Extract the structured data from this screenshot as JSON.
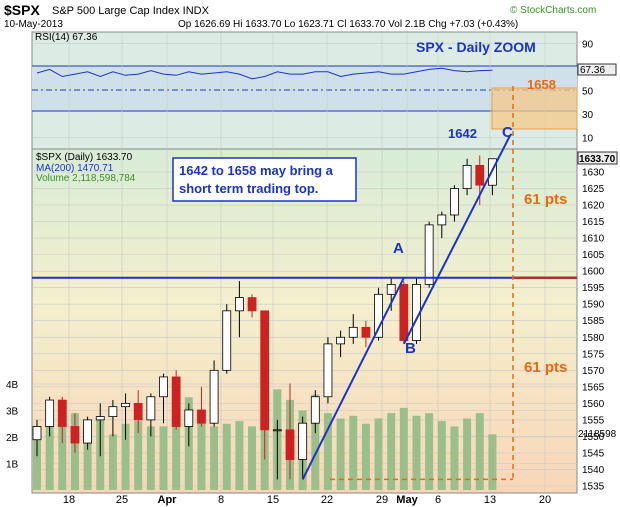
{
  "header": {
    "symbol": "$SPX",
    "name": "S&P 500 Large Cap Index  INDX",
    "date": "10-May-2013",
    "ohlc": "Op 1626.69   Hi 1633.70   Lo 1623.71   Cl 1633.70   Vol 2.1B   Chg +7.03 (+0.43%)",
    "up_arrow": "▲",
    "brand": "© StockCharts.com"
  },
  "rsi_panel": {
    "label": "RSI(14) 67.36",
    "value_tag": "67.36",
    "ticks": [
      "90",
      "70",
      "50",
      "30",
      "10"
    ],
    "title": "SPX - Daily ZOOM"
  },
  "price_panel": {
    "legend_main": "$SPX (Daily) 1633.70",
    "legend_ma": "MA(200) 1470.71",
    "legend_volume": "Volume 2,118,598,784",
    "price_tag": "1633.70",
    "volume_tag": "2118598",
    "volume_ticks": [
      "4B",
      "3B",
      "2B",
      "1B"
    ]
  },
  "annotations": {
    "note_line1": "1642 to 1658 may bring a",
    "note_line2": "short term trading top.",
    "label_1658": "1658",
    "label_1642": "1642",
    "label_A": "A",
    "label_B": "B",
    "label_C": "C",
    "pts_upper": "61 pts",
    "pts_lower": "61 pts"
  },
  "colors": {
    "up": "#ffffff",
    "down": "#cc2222",
    "blue": "#1a33cc",
    "orange": "#e86a10",
    "volume": "#9bbf8a",
    "rsi_bg": "#dcebe4",
    "price_bg_top": "#d8ecd7",
    "price_bg_bottom": "#f8d6b8"
  },
  "chart_data": {
    "type": "candlestick",
    "title": "SPX - Daily ZOOM",
    "price_axis": [
      1535,
      1634
    ],
    "price_ticks": [
      1535,
      1540,
      1545,
      1550,
      1555,
      1560,
      1565,
      1570,
      1575,
      1580,
      1585,
      1590,
      1595,
      1600,
      1605,
      1610,
      1615,
      1620,
      1625,
      1630
    ],
    "x_tick_labels": [
      "18",
      "25",
      "Apr",
      "8",
      "15",
      "22",
      "29",
      "May",
      "6",
      "13",
      "20"
    ],
    "candles": [
      {
        "o": 1549.0,
        "h": 1555.0,
        "l": 1544.0,
        "c": 1553.0,
        "v": 2.0
      },
      {
        "o": 1553.0,
        "h": 1562.0,
        "l": 1550.0,
        "c": 1561.0,
        "v": 2.5
      },
      {
        "o": 1561.0,
        "h": 1562.0,
        "l": 1548.0,
        "c": 1553.0,
        "v": 3.0
      },
      {
        "o": 1553.0,
        "h": 1557.0,
        "l": 1545.0,
        "c": 1548.0,
        "v": 2.9
      },
      {
        "o": 1548.0,
        "h": 1556.0,
        "l": 1546.0,
        "c": 1555.0,
        "v": 2.2
      },
      {
        "o": 1555.0,
        "h": 1560.0,
        "l": 1544.0,
        "c": 1556.0,
        "v": 2.7
      },
      {
        "o": 1556.0,
        "h": 1561.0,
        "l": 1550.0,
        "c": 1559.0,
        "v": 2.1
      },
      {
        "o": 1559.0,
        "h": 1563.0,
        "l": 1549.0,
        "c": 1560.0,
        "v": 2.5
      },
      {
        "o": 1560.0,
        "h": 1564.0,
        "l": 1551.0,
        "c": 1555.0,
        "v": 2.6
      },
      {
        "o": 1555.0,
        "h": 1563.0,
        "l": 1550.0,
        "c": 1562.0,
        "v": 2.4
      },
      {
        "o": 1562.0,
        "h": 1569.0,
        "l": 1554.0,
        "c": 1568.0,
        "v": 2.4
      },
      {
        "o": 1568.0,
        "h": 1570.0,
        "l": 1552.0,
        "c": 1553.0,
        "v": 3.0
      },
      {
        "o": 1553.0,
        "h": 1560.0,
        "l": 1547.0,
        "c": 1558.0,
        "v": 3.5
      },
      {
        "o": 1558.0,
        "h": 1565.0,
        "l": 1553.0,
        "c": 1554.0,
        "v": 2.6
      },
      {
        "o": 1554.0,
        "h": 1573.0,
        "l": 1553.0,
        "c": 1570.0,
        "v": 2.4
      },
      {
        "o": 1570.0,
        "h": 1590.0,
        "l": 1569.0,
        "c": 1588.0,
        "v": 2.5
      },
      {
        "o": 1588.0,
        "h": 1597.0,
        "l": 1580.0,
        "c": 1592.0,
        "v": 2.6
      },
      {
        "o": 1592.0,
        "h": 1593.0,
        "l": 1586.0,
        "c": 1588.0,
        "v": 2.4
      },
      {
        "o": 1588.0,
        "h": 1588.0,
        "l": 1543.0,
        "c": 1552.0,
        "v": 4.5
      },
      {
        "o": 1552.0,
        "h": 1555.0,
        "l": 1537.0,
        "c": 1552.0,
        "v": 3.8
      },
      {
        "o": 1552.0,
        "h": 1566.0,
        "l": 1537.0,
        "c": 1543.0,
        "v": 3.4
      },
      {
        "o": 1543.0,
        "h": 1556.0,
        "l": 1537.0,
        "c": 1554.0,
        "v": 3.0
      },
      {
        "o": 1554.0,
        "h": 1564.0,
        "l": 1551.0,
        "c": 1562.0,
        "v": 3.6
      },
      {
        "o": 1562.0,
        "h": 1580.0,
        "l": 1560.0,
        "c": 1578.0,
        "v": 2.9
      },
      {
        "o": 1578.0,
        "h": 1582.0,
        "l": 1574.0,
        "c": 1580.0,
        "v": 2.7
      },
      {
        "o": 1580.0,
        "h": 1587.0,
        "l": 1578.0,
        "c": 1583.0,
        "v": 2.8
      },
      {
        "o": 1583.0,
        "h": 1585.0,
        "l": 1577.0,
        "c": 1580.0,
        "v": 2.5
      },
      {
        "o": 1580.0,
        "h": 1595.0,
        "l": 1579.0,
        "c": 1593.0,
        "v": 2.7
      },
      {
        "o": 1593.0,
        "h": 1598.0,
        "l": 1588.0,
        "c": 1596.0,
        "v": 2.9
      },
      {
        "o": 1596.0,
        "h": 1597.0,
        "l": 1578.0,
        "c": 1579.0,
        "v": 3.1
      },
      {
        "o": 1579.0,
        "h": 1598.0,
        "l": 1578.0,
        "c": 1596.0,
        "v": 2.8
      },
      {
        "o": 1596.0,
        "h": 1615.0,
        "l": 1595.0,
        "c": 1614.0,
        "v": 2.9
      },
      {
        "o": 1614.0,
        "h": 1618.0,
        "l": 1610.0,
        "c": 1617.0,
        "v": 2.6
      },
      {
        "o": 1617.0,
        "h": 1626.0,
        "l": 1615.0,
        "c": 1625.0,
        "v": 2.4
      },
      {
        "o": 1625.0,
        "h": 1634.0,
        "l": 1623.0,
        "c": 1632.0,
        "v": 2.7
      },
      {
        "o": 1632.0,
        "h": 1635.0,
        "l": 1620.0,
        "c": 1626.0,
        "v": 2.9
      },
      {
        "o": 1626.0,
        "h": 1634.0,
        "l": 1623.0,
        "c": 1634.0,
        "v": 2.1
      }
    ],
    "rsi_line_points": [
      65,
      68,
      62,
      64,
      66,
      62,
      66,
      63,
      64,
      67,
      64,
      63,
      66,
      64,
      65,
      66,
      64,
      60,
      62,
      66,
      64,
      64,
      66,
      66,
      62,
      64,
      65,
      66,
      64,
      64,
      66,
      68,
      69,
      67,
      66,
      67,
      67.36
    ],
    "levels": {
      "support": 1598,
      "target_low": 1642,
      "target_high": 1658
    },
    "ylabel": "",
    "xlabel": ""
  }
}
